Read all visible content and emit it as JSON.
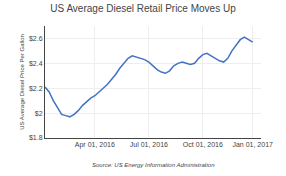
{
  "chart_data": {
    "type": "line",
    "title": "US Average Diesel Retail Price Moves Up",
    "y_label": "US Average Diesel Price Per Gallon",
    "annotations": [
      "Source: US Energy Information Administration"
    ],
    "x": [
      0,
      1,
      2,
      3,
      4,
      5,
      6,
      7,
      8,
      9,
      10,
      11,
      12,
      13,
      14,
      15,
      16,
      17,
      18,
      19,
      20,
      21,
      22,
      23,
      24,
      25,
      26,
      27,
      28,
      29,
      30,
      31,
      32,
      33,
      34,
      35,
      36,
      37,
      38,
      39,
      40,
      41,
      42,
      43,
      44,
      45,
      46,
      47,
      48,
      49,
      50
    ],
    "values": [
      2.21,
      2.17,
      2.1,
      2.04,
      1.99,
      1.98,
      1.97,
      1.99,
      2.02,
      2.06,
      2.09,
      2.12,
      2.14,
      2.17,
      2.2,
      2.23,
      2.27,
      2.31,
      2.36,
      2.4,
      2.44,
      2.46,
      2.45,
      2.44,
      2.43,
      2.41,
      2.38,
      2.35,
      2.33,
      2.32,
      2.34,
      2.38,
      2.4,
      2.41,
      2.4,
      2.39,
      2.4,
      2.44,
      2.47,
      2.48,
      2.46,
      2.44,
      2.42,
      2.41,
      2.44,
      2.5,
      2.55,
      2.59,
      2.61,
      2.59,
      2.57
    ],
    "color": "#4472c4",
    "xlim": [
      0,
      52
    ],
    "xticks": [
      {
        "value": 12,
        "label": "Apr 01, 2016"
      },
      {
        "value": 25,
        "label": "Jul 01, 2016"
      },
      {
        "value": 38,
        "label": "Oct 01, 2016"
      },
      {
        "value": 50,
        "label": "Jan 01, 2017"
      }
    ],
    "ylim": [
      1.8,
      2.7
    ],
    "yticks": [
      {
        "value": 1.8,
        "label": "$1.8"
      },
      {
        "value": 2.0,
        "label": "$2"
      },
      {
        "value": 2.2,
        "label": "$2.2"
      },
      {
        "value": 2.4,
        "label": "$2.4"
      },
      {
        "value": 2.6,
        "label": "$2.6"
      }
    ],
    "grid": true
  }
}
